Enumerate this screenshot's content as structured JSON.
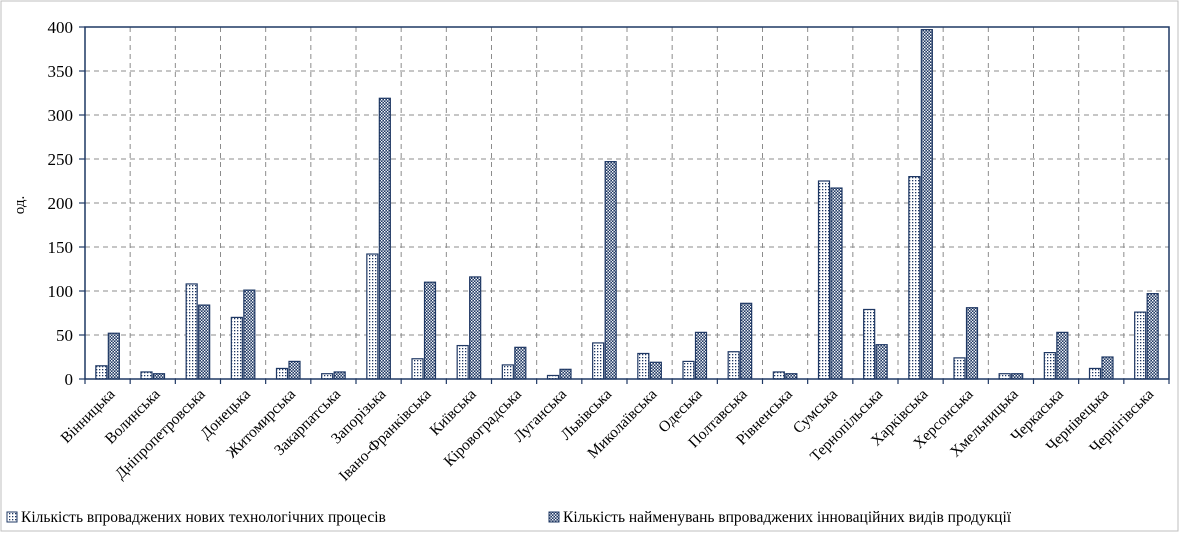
{
  "chart_data": {
    "type": "bar",
    "title": "",
    "xlabel": "",
    "ylabel": "од.",
    "ylim": [
      0,
      400
    ],
    "yticks": [
      0,
      50,
      100,
      150,
      200,
      250,
      300,
      350,
      400
    ],
    "grid": true,
    "legend_position": "bottom",
    "categories": [
      "Вінницька",
      "Волинська",
      "Дніпропетровська",
      "Донецька",
      "Житомирська",
      "Закарпатська",
      "Запорізька",
      "Івано-Франківська",
      "Київська",
      "Кіровоградська",
      "Луганська",
      "Львівська",
      "Миколаївська",
      "Одеська",
      "Полтавська",
      "Рівненська",
      "Сумська",
      "Тернопільська",
      "Харківська",
      "Херсонська",
      "Хмельницька",
      "Черкаська",
      "Чернівецька",
      "Чернігівська"
    ],
    "series": [
      {
        "name": "Кількість впроваджених нових технологічних процесів",
        "color": "#1f3864",
        "pattern": "dots",
        "values": [
          15,
          8,
          108,
          70,
          12,
          6,
          142,
          23,
          38,
          16,
          4,
          41,
          29,
          20,
          31,
          8,
          225,
          79,
          230,
          24,
          6,
          30,
          12,
          76
        ]
      },
      {
        "name": "Кількість найменувань впроваджених інноваційних видів продукції",
        "color": "#1f3864",
        "pattern": "crosshatch",
        "values": [
          52,
          6,
          84,
          101,
          20,
          8,
          319,
          110,
          116,
          36,
          11,
          247,
          19,
          53,
          86,
          6,
          217,
          39,
          397,
          81,
          6,
          53,
          25,
          97
        ]
      }
    ]
  }
}
